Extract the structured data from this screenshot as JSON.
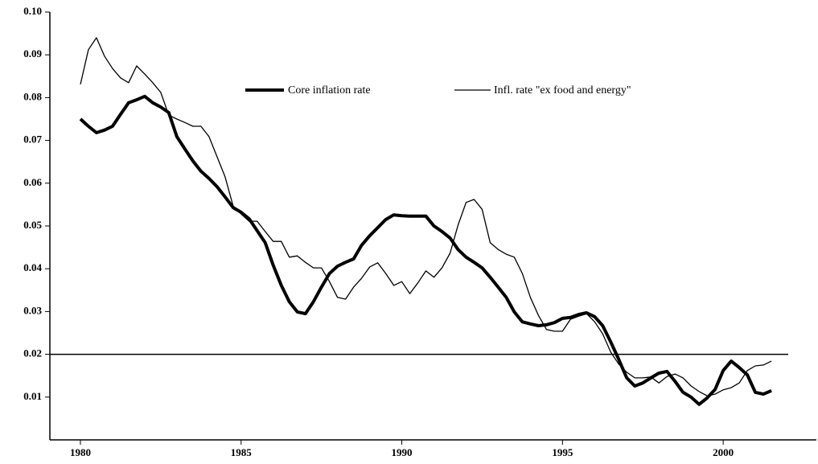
{
  "chart_data": {
    "type": "line",
    "x": [
      1980,
      1980.25,
      1980.5,
      1980.75,
      1981,
      1981.25,
      1981.5,
      1981.75,
      1982,
      1982.25,
      1982.5,
      1982.75,
      1983,
      1983.25,
      1983.5,
      1983.75,
      1984,
      1984.25,
      1984.5,
      1984.75,
      1985,
      1985.25,
      1985.5,
      1985.75,
      1986,
      1986.25,
      1986.5,
      1986.75,
      1987,
      1987.25,
      1987.5,
      1987.75,
      1988,
      1988.25,
      1988.5,
      1988.75,
      1989,
      1989.25,
      1989.5,
      1989.75,
      1990,
      1990.25,
      1990.5,
      1990.75,
      1991,
      1991.25,
      1991.5,
      1991.75,
      1992,
      1992.25,
      1992.5,
      1992.75,
      1993,
      1993.25,
      1993.5,
      1993.75,
      1994,
      1994.25,
      1994.5,
      1994.75,
      1995,
      1995.25,
      1995.5,
      1995.75,
      1996,
      1996.25,
      1996.5,
      1996.75,
      1997,
      1997.25,
      1997.5,
      1997.75,
      1998,
      1998.25,
      1998.5,
      1998.75,
      1999,
      1999.25,
      1999.5,
      1999.75,
      2000,
      2000.25,
      2000.5,
      2000.75,
      2001,
      2001.25,
      2001.5
    ],
    "series": [
      {
        "name": "Core inflation rate",
        "color": "#000000",
        "width": 4,
        "values": [
          0.075,
          0.0733,
          0.0718,
          0.0724,
          0.0733,
          0.0761,
          0.0788,
          0.0795,
          0.0803,
          0.0788,
          0.0778,
          0.0765,
          0.0709,
          0.068,
          0.0652,
          0.0628,
          0.0611,
          0.0592,
          0.0568,
          0.0543,
          0.0532,
          0.0517,
          0.0489,
          0.0461,
          0.0408,
          0.0361,
          0.0323,
          0.0299,
          0.0295,
          0.0323,
          0.0357,
          0.0389,
          0.0406,
          0.0415,
          0.0423,
          0.0455,
          0.0477,
          0.0496,
          0.0515,
          0.0526,
          0.0524,
          0.0523,
          0.0523,
          0.0523,
          0.05,
          0.0487,
          0.0472,
          0.0445,
          0.0427,
          0.0415,
          0.0402,
          0.038,
          0.0357,
          0.0333,
          0.0299,
          0.0276,
          0.0271,
          0.0267,
          0.0269,
          0.0274,
          0.0284,
          0.0286,
          0.0293,
          0.0297,
          0.0288,
          0.0267,
          0.0229,
          0.0188,
          0.0145,
          0.0126,
          0.0133,
          0.0145,
          0.0156,
          0.016,
          0.0137,
          0.0111,
          0.01,
          0.0083,
          0.0098,
          0.0118,
          0.0162,
          0.0184,
          0.0169,
          0.0152,
          0.0111,
          0.0107,
          0.0115
        ]
      },
      {
        "name": "Infl. rate \"ex food and energy\"",
        "color": "#000000",
        "width": 1.3,
        "values": [
          0.0831,
          0.0912,
          0.094,
          0.0897,
          0.0868,
          0.0846,
          0.0835,
          0.0874,
          0.0855,
          0.0835,
          0.0812,
          0.0759,
          0.075,
          0.0742,
          0.0733,
          0.0733,
          0.0709,
          0.0662,
          0.0615,
          0.0547,
          0.0528,
          0.0511,
          0.0511,
          0.0487,
          0.0464,
          0.0464,
          0.0427,
          0.043,
          0.0415,
          0.0402,
          0.0402,
          0.037,
          0.0333,
          0.0329,
          0.0357,
          0.0378,
          0.0404,
          0.0414,
          0.0389,
          0.0361,
          0.037,
          0.0342,
          0.0367,
          0.0395,
          0.038,
          0.0402,
          0.0436,
          0.0502,
          0.0555,
          0.0562,
          0.0539,
          0.0461,
          0.0445,
          0.0434,
          0.0427,
          0.0389,
          0.0333,
          0.0291,
          0.0258,
          0.0254,
          0.0254,
          0.0282,
          0.0289,
          0.0295,
          0.0276,
          0.0248,
          0.0205,
          0.0177,
          0.0158,
          0.0145,
          0.0145,
          0.0147,
          0.0133,
          0.0148,
          0.0154,
          0.0145,
          0.0126,
          0.0113,
          0.0103,
          0.0107,
          0.0117,
          0.0122,
          0.0133,
          0.0162,
          0.0173,
          0.0175,
          0.0184
        ]
      }
    ],
    "reference_line": 0.02,
    "xlim": [
      1979.05,
      2002.9
    ],
    "ylim": [
      0,
      0.1
    ],
    "xticks": [
      1980,
      1985,
      1990,
      1995,
      2000
    ],
    "yticks": [
      0.01,
      0.02,
      0.03,
      0.04,
      0.05,
      0.06,
      0.07,
      0.08,
      0.09,
      {
        "value": 0.1,
        "label": "0.10"
      }
    ],
    "grid": false
  }
}
